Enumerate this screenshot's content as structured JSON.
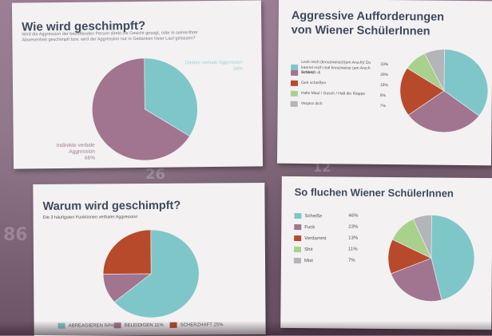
{
  "background_numbers": [
    "26",
    "86",
    "12"
  ],
  "panel1": {
    "title": "Wie wird geschimpft?",
    "question": "Wird die Aggression der betreffenden Person direkt ins Gesicht gesagt, oder in seiner/ihrer Abwesenheit geschimpft bzw. wird der Aggression nur in Gedanken freier Lauf gelassen?",
    "slices": [
      {
        "label": "Direkte verbale Aggression",
        "value": 34,
        "value_text": "34%",
        "color": "#7fc6c9"
      },
      {
        "label": "Indirekte verbale Aggression",
        "value": 66,
        "value_text": "66%",
        "color": "#a1758f"
      }
    ]
  },
  "panel2": {
    "title_line1": "Aggressive Aufforderungen",
    "title_line2": "von Wiener SchülerInnen",
    "items": [
      {
        "label": "Leck mich (kreuzweise)/(am Arsch)/ Du kannst mich mal kreuzweise (am Arsch lecken)",
        "value": 33,
        "value_text": "33%",
        "color": "#7fc6c9"
      },
      {
        "label": "Schleich di",
        "value": 28,
        "value_text": "28%",
        "color": "#a1758f"
      },
      {
        "label": "Geh scheißen",
        "value": 18,
        "value_text": "18%",
        "color": "#b84a2c"
      },
      {
        "label": "Halts Maul / Gusch / Halt die Klappe",
        "value": 8,
        "value_text": "8%",
        "color": "#a9d18e"
      },
      {
        "label": "Verpiss dich",
        "value": 7,
        "value_text": "7%",
        "color": "#b3b5b8"
      }
    ]
  },
  "panel3": {
    "title": "Warum wird geschimpft?",
    "subtitle": "Die 3 häufigsten Funktionen verbaler Aggression",
    "items": [
      {
        "label": "ABREAGIEREN 64%",
        "value": 64,
        "color": "#7fc6c9"
      },
      {
        "label": "BELEIDIGEN 11%",
        "value": 11,
        "color": "#a1758f"
      },
      {
        "label": "SCHERZHAFT 25%",
        "value": 25,
        "color": "#b84a2c"
      }
    ]
  },
  "panel4": {
    "title": "So fluchen Wiener SchülerInnen",
    "items": [
      {
        "label": "Scheiße",
        "value": 46,
        "value_text": "46%",
        "color": "#7fc6c9"
      },
      {
        "label": "Fuck",
        "value": 23,
        "value_text": "23%",
        "color": "#a1758f"
      },
      {
        "label": "Verdammt",
        "value": 13,
        "value_text": "13%",
        "color": "#b84a2c"
      },
      {
        "label": "Shit",
        "value": 11,
        "value_text": "11%",
        "color": "#a9d18e"
      },
      {
        "label": "Mist",
        "value": 7,
        "value_text": "7%",
        "color": "#b3b5b8"
      }
    ]
  }
}
